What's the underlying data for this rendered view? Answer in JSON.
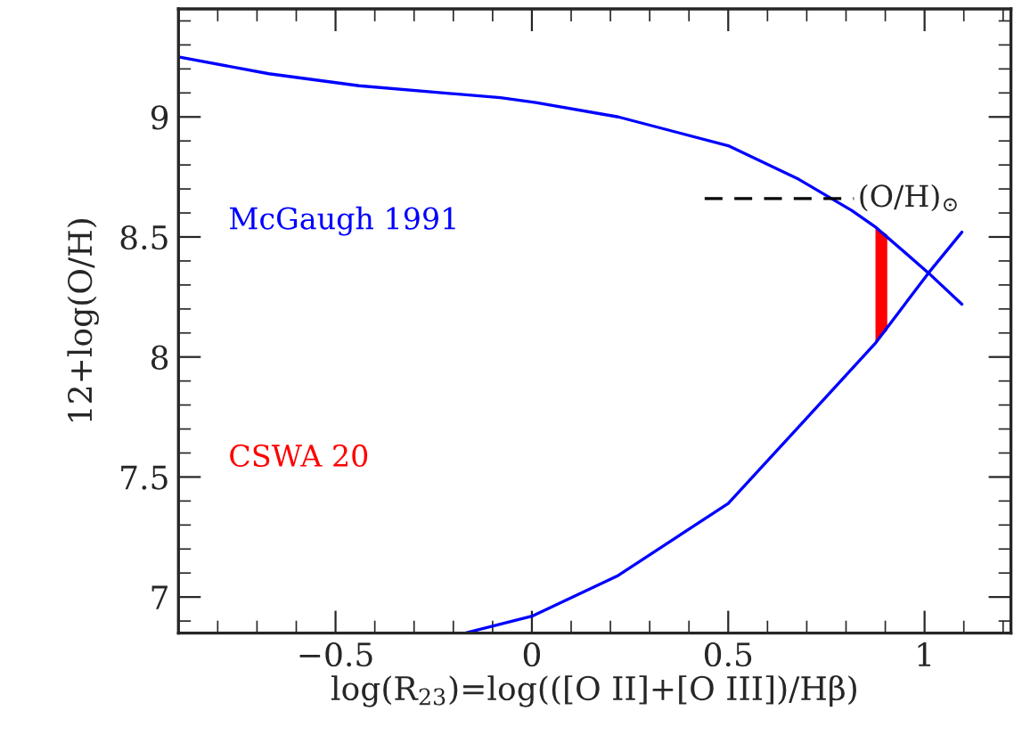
{
  "chart_data": {
    "type": "line",
    "xlabel": "log(R$_{23}$)=log(([O II]+[O III])/Hβ)",
    "ylabel": "12+log(O/H)",
    "xlim": [
      -0.9,
      1.22
    ],
    "xticks": [
      -0.5,
      0,
      0.5,
      1
    ],
    "ylim": [
      6.85,
      9.45
    ],
    "yticks": [
      7,
      7.5,
      8,
      8.5,
      9
    ],
    "grid": false,
    "legend": false,
    "series": [
      {
        "name": "McGaugh 1991",
        "color": "#0000ff",
        "x": [
          -0.9,
          -0.67,
          -0.44,
          -0.08,
          0.01,
          0.22,
          0.5,
          0.68,
          0.815,
          0.876,
          1.01,
          1.095
        ],
        "values": [
          9.25,
          9.18,
          9.13,
          9.08,
          9.06,
          9.0,
          8.88,
          8.74,
          8.61,
          8.54,
          8.35,
          8.22
        ]
      },
      {
        "color": "#0000ff",
        "x": [
          -0.17,
          0.0,
          0.22,
          0.5,
          0.68,
          0.876,
          1.01,
          1.095
        ],
        "values": [
          6.85,
          6.92,
          7.09,
          7.39,
          7.71,
          8.06,
          8.35,
          8.52
        ]
      },
      {
        "name": "CSWA 20",
        "type": "area",
        "color": "#ff0000",
        "x": [
          0.875,
          0.875,
          0.905,
          0.905
        ],
        "values": [
          8.06,
          8.54,
          8.51,
          8.11
        ]
      },
      {
        "color": "#000000",
        "line_style": "dashed",
        "x": [
          0.44,
          0.82
        ],
        "values": [
          8.66,
          8.66
        ]
      }
    ],
    "annotations": [
      {
        "text": "(O/H)$_{⊙}$",
        "x": 0.83,
        "y": 8.66
      }
    ]
  }
}
